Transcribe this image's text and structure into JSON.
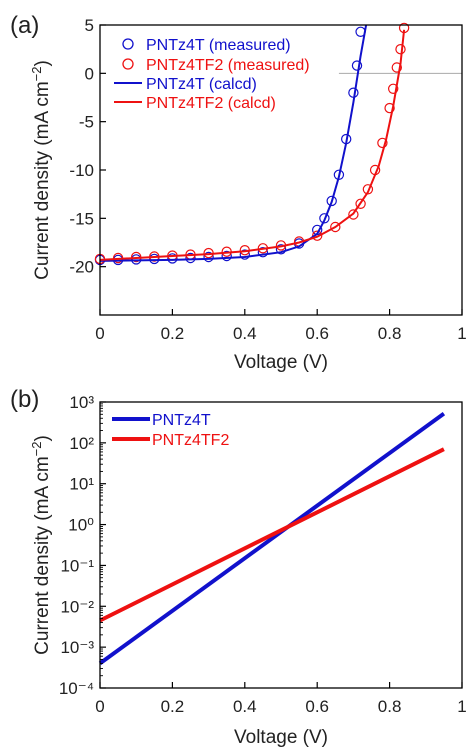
{
  "colors": {
    "pntz4t": "#1111cc",
    "pntz4tf2": "#ee1111",
    "zero_line": "#aaaaaa",
    "axis": "#000000"
  },
  "chart_data": [
    {
      "panel_label": "(a)",
      "type": "line",
      "xlabel": "Voltage (V)",
      "ylabel_main": "Current density (mA cm",
      "ylabel_sup": "−2",
      "ylabel_tail": ")",
      "xlim": [
        0,
        1
      ],
      "ylim": [
        -25,
        5
      ],
      "xticks": [
        "0",
        "0.2",
        "0.4",
        "0.6",
        "0.8",
        "1"
      ],
      "yticks": [
        "5",
        "0",
        "-5",
        "-10",
        "-15",
        "-20"
      ],
      "ytick_values": [
        5,
        0,
        -5,
        -10,
        -15,
        -20
      ],
      "zero_line": true,
      "legend_position": "top-left",
      "series": [
        {
          "name": "PNTz4T (measured)",
          "style": "open-circles",
          "x": [
            0.0,
            0.05,
            0.1,
            0.15,
            0.2,
            0.25,
            0.3,
            0.35,
            0.4,
            0.45,
            0.5,
            0.55,
            0.6,
            0.62,
            0.64,
            0.66,
            0.68,
            0.7,
            0.71,
            0.72
          ],
          "y": [
            -19.3,
            -19.3,
            -19.25,
            -19.2,
            -19.15,
            -19.1,
            -19.0,
            -18.9,
            -18.75,
            -18.5,
            -18.2,
            -17.6,
            -16.2,
            -15.0,
            -13.2,
            -10.5,
            -6.8,
            -2.0,
            0.8,
            4.3
          ]
        },
        {
          "name": "PNTz4TF2 (measured)",
          "style": "open-circles",
          "x": [
            0.0,
            0.05,
            0.1,
            0.15,
            0.2,
            0.25,
            0.3,
            0.35,
            0.4,
            0.45,
            0.5,
            0.55,
            0.6,
            0.65,
            0.7,
            0.72,
            0.74,
            0.76,
            0.78,
            0.8,
            0.81,
            0.82,
            0.83,
            0.84
          ],
          "y": [
            -19.2,
            -19.1,
            -19.0,
            -18.95,
            -18.85,
            -18.75,
            -18.6,
            -18.45,
            -18.3,
            -18.1,
            -17.8,
            -17.4,
            -16.8,
            -15.9,
            -14.6,
            -13.5,
            -12.0,
            -10.0,
            -7.2,
            -3.6,
            -1.6,
            0.6,
            2.5,
            4.7
          ]
        },
        {
          "name": "PNTz4T (calcd)",
          "style": "line",
          "x": [
            0.0,
            0.1,
            0.2,
            0.3,
            0.4,
            0.5,
            0.55,
            0.6,
            0.62,
            0.64,
            0.66,
            0.68,
            0.7,
            0.72,
            0.735
          ],
          "y": [
            -19.4,
            -19.35,
            -19.3,
            -19.2,
            -19.0,
            -18.5,
            -17.9,
            -16.6,
            -15.2,
            -13.3,
            -10.7,
            -7.2,
            -3.0,
            1.8,
            5.0
          ]
        },
        {
          "name": "PNTz4TF2 (calcd)",
          "style": "line",
          "x": [
            0.0,
            0.1,
            0.2,
            0.3,
            0.4,
            0.5,
            0.55,
            0.6,
            0.65,
            0.7,
            0.74,
            0.77,
            0.79,
            0.81,
            0.83,
            0.84
          ],
          "y": [
            -19.3,
            -19.1,
            -18.9,
            -18.7,
            -18.4,
            -17.9,
            -17.5,
            -16.9,
            -15.9,
            -14.5,
            -12.3,
            -9.6,
            -6.9,
            -3.4,
            1.0,
            4.5
          ]
        }
      ]
    },
    {
      "panel_label": "(b)",
      "type": "line",
      "xlabel": "Voltage (V)",
      "ylabel_main": "Current density (mA cm",
      "ylabel_sup": "−2",
      "ylabel_tail": ")",
      "xlim": [
        0,
        1
      ],
      "ylim": [
        0.0001,
        1000
      ],
      "yscale": "log",
      "xticks": [
        "0",
        "0.2",
        "0.4",
        "0.6",
        "0.8",
        "1"
      ],
      "yticks": [
        "10³",
        "10²",
        "10¹",
        "10⁰",
        "10⁻¹",
        "10⁻²",
        "10⁻³",
        "10⁻⁴"
      ],
      "ytick_exponents": [
        3,
        2,
        1,
        0,
        -1,
        -2,
        -3,
        -4
      ],
      "legend_position": "top-left",
      "series": [
        {
          "name": "PNTz4T",
          "x": [
            0.0,
            0.95
          ],
          "y": [
            0.0004,
            520
          ]
        },
        {
          "name": "PNTz4TF2",
          "x": [
            0.0,
            0.95
          ],
          "y": [
            0.0045,
            70
          ]
        }
      ]
    }
  ]
}
